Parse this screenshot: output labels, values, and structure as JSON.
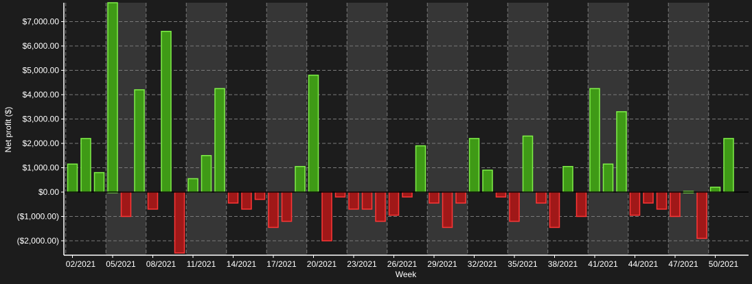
{
  "chart_data": {
    "type": "bar",
    "xlabel": "Week",
    "ylabel": "Net profit ($)",
    "ylim": [
      -2500,
      7800
    ],
    "y_ticks": [
      7000,
      6000,
      5000,
      4000,
      3000,
      2000,
      1000,
      0,
      -1000,
      -2000
    ],
    "y_tick_labels": [
      "$7,000.00",
      "$6,000.00",
      "$5,000.00",
      "$4,000.00",
      "$3,000.00",
      "$2,000.00",
      "$1,000.00",
      "$0.00",
      "($1,000.00)",
      "($2,000.00)"
    ],
    "x_tick_labels": [
      "02/2021",
      "05/2021",
      "08/2021",
      "11/2021",
      "14/2021",
      "17/2021",
      "20/2021",
      "23/2021",
      "26/2021",
      "29/2021",
      "32/2021",
      "35/2021",
      "38/2021",
      "41/2021",
      "44/2021",
      "47/2021",
      "50/2021"
    ],
    "categories": [
      "02/2021",
      "03/2021",
      "04/2021",
      "05/2021",
      "06/2021",
      "07/2021",
      "08/2021",
      "09/2021",
      "10/2021",
      "11/2021",
      "12/2021",
      "13/2021",
      "14/2021",
      "15/2021",
      "16/2021",
      "17/2021",
      "18/2021",
      "19/2021",
      "20/2021",
      "21/2021",
      "22/2021",
      "23/2021",
      "24/2021",
      "25/2021",
      "26/2021",
      "27/2021",
      "28/2021",
      "29/2021",
      "30/2021",
      "31/2021",
      "32/2021",
      "33/2021",
      "34/2021",
      "35/2021",
      "36/2021",
      "37/2021",
      "38/2021",
      "39/2021",
      "40/2021",
      "41/2021",
      "42/2021",
      "43/2021",
      "44/2021",
      "45/2021",
      "46/2021",
      "47/2021",
      "48/2021",
      "49/2021",
      "50/2021",
      "51/2021"
    ],
    "values": [
      1150,
      2200,
      800,
      7800,
      -1000,
      4200,
      -700,
      6600,
      -2500,
      550,
      1500,
      4250,
      -450,
      -700,
      -300,
      -1450,
      -1200,
      1050,
      4800,
      -2000,
      -200,
      -700,
      -700,
      -1200,
      -950,
      -200,
      1900,
      -450,
      -1450,
      -450,
      2200,
      900,
      -200,
      -1200,
      2300,
      -450,
      -1450,
      1050,
      -1000,
      4250,
      1150,
      3300,
      -950,
      -450,
      -700,
      -1000,
      0,
      -1900,
      200,
      2200
    ],
    "grid": true,
    "colors": {
      "background": "#1c1c1c",
      "band": "#363636",
      "positive_fill": "#3f9a16",
      "positive_stroke": "#80f048",
      "negative_fill": "#a01818",
      "negative_stroke": "#ff3636",
      "grid": "#7a7a7a",
      "axis": "#ffffff",
      "text": "#ffffff"
    }
  }
}
